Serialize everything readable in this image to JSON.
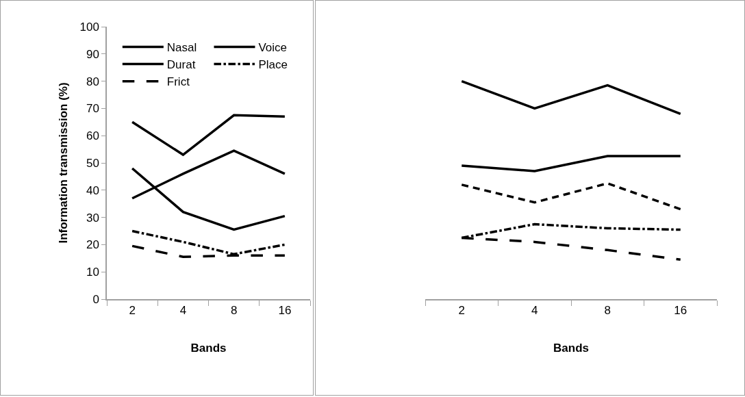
{
  "chart_data": [
    {
      "type": "line",
      "categories": [
        "2",
        "4",
        "8",
        "16"
      ],
      "xlabel": "Bands",
      "ylabel": "Information transmission (%)",
      "ylim": [
        0,
        100
      ],
      "yticks": [
        0,
        10,
        20,
        30,
        40,
        50,
        60,
        70,
        80,
        90,
        100
      ],
      "grid": false,
      "legend": "top left",
      "series": [
        {
          "name": "Nasal",
          "color": "#000000",
          "line_style": "solid",
          "values": [
            65,
            53,
            67.5,
            67
          ]
        },
        {
          "name": "Voice",
          "color": "#000000",
          "line_style": "solid",
          "values": [
            37,
            46,
            54.5,
            46
          ]
        },
        {
          "name": "Durat",
          "color": "#000000",
          "line_style": "solid",
          "values": [
            48,
            32,
            25.5,
            30.5
          ]
        },
        {
          "name": "Place",
          "color": "#000000",
          "line_style": "dash-dot",
          "values": [
            25,
            21,
            16.5,
            20
          ]
        },
        {
          "name": "Frict",
          "color": "#000000",
          "line_style": "long-dash",
          "values": [
            19.5,
            15.5,
            16,
            16
          ]
        }
      ]
    },
    {
      "type": "line",
      "categories": [
        "2",
        "4",
        "8",
        "16"
      ],
      "xlabel": "Bands",
      "ylim": [
        0,
        100
      ],
      "yticks": [
        0,
        10,
        20,
        30,
        40,
        50,
        60,
        70,
        80,
        90,
        100
      ],
      "grid": false,
      "tick_labels": "x",
      "series": [
        {
          "color": "#000000",
          "line_style": "solid",
          "values": [
            80,
            70,
            78.5,
            68
          ]
        },
        {
          "color": "#000000",
          "line_style": "solid",
          "values": [
            49,
            47,
            52.5,
            52.5
          ]
        },
        {
          "color": "#000000",
          "line_style": "dashed",
          "values": [
            42,
            35.5,
            42.5,
            33
          ]
        },
        {
          "color": "#000000",
          "line_style": "dash-dot",
          "values": [
            22.5,
            27.5,
            26,
            25.5
          ]
        },
        {
          "color": "#000000",
          "line_style": "long-dash",
          "values": [
            22.5,
            21,
            18,
            14.5
          ]
        }
      ]
    }
  ]
}
